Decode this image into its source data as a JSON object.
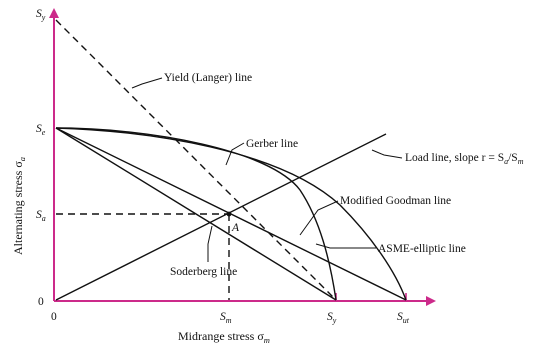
{
  "axes": {
    "y_label": "Alternating stress σa",
    "y_label_main": "Alternating stress σ",
    "y_label_sub": "a",
    "x_label_main": "Midrange stress σ",
    "x_label_sub": "m"
  },
  "ticks": {
    "origin_y": "0",
    "origin_x": "0",
    "sy_left": "S",
    "sy_left_sub": "y",
    "se": "S",
    "se_sub": "e",
    "sa": "S",
    "sa_sub": "a",
    "sm": "S",
    "sm_sub": "m",
    "sy_bottom": "S",
    "sy_bottom_sub": "y",
    "sut": "S",
    "sut_sub": "ut"
  },
  "labels": {
    "yield": "Yield (Langer) line",
    "gerber": "Gerber line",
    "load_prefix": "Load line, slope r = S",
    "load_sub1": "a",
    "load_mid": "/S",
    "load_sub2": "m",
    "goodman": "Modified Goodman line",
    "asme": "ASME-elliptic line",
    "soderberg": "Soderberg line",
    "point_a": "A"
  }
}
